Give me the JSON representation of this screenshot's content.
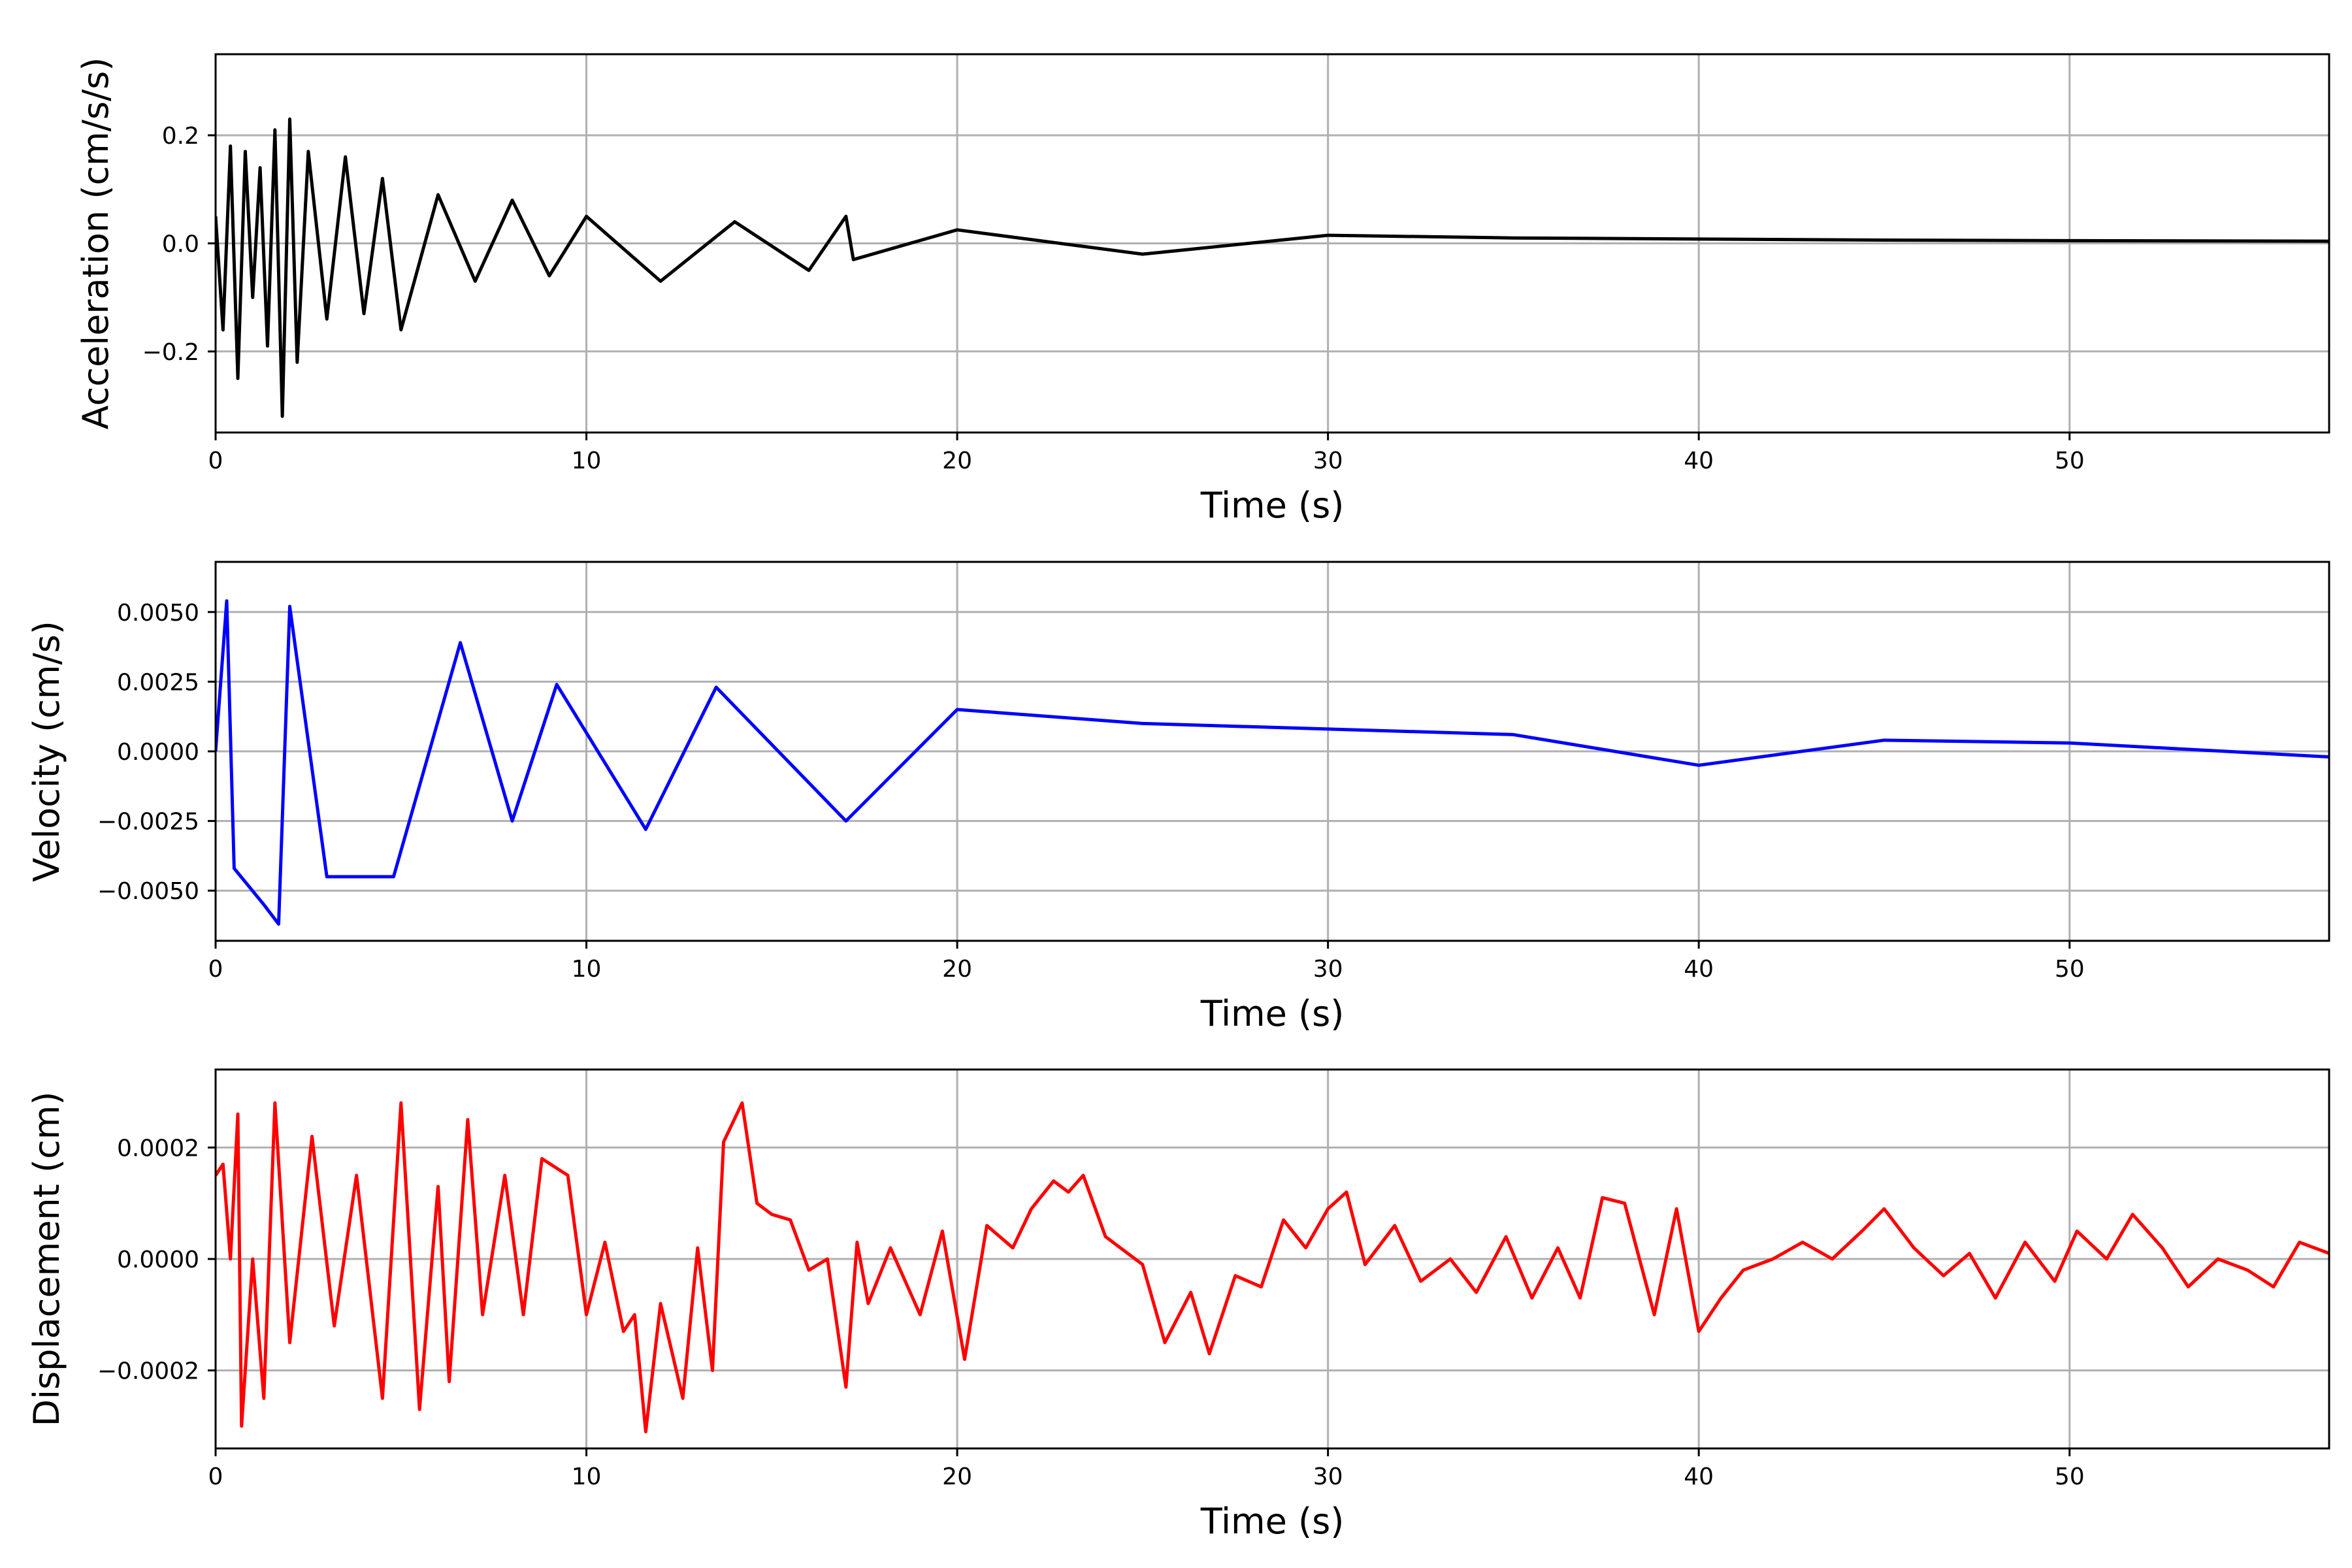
{
  "chart_data": [
    {
      "type": "line",
      "xlabel": "Time (s)",
      "ylabel": "Acceleration (cm/s/s)",
      "xlim": [
        0,
        57
      ],
      "ylim": [
        -0.35,
        0.35
      ],
      "xticks": [
        0,
        10,
        20,
        30,
        40,
        50
      ],
      "xtick_labels": [
        "0",
        "10",
        "20",
        "30",
        "40",
        "50"
      ],
      "yticks": [
        -0.2,
        0.0,
        0.2
      ],
      "ytick_labels": [
        "−0.2",
        "0.0",
        "0.2"
      ],
      "grid": true,
      "color": "#000000",
      "series": [
        {
          "x": [
            0,
            0.2,
            0.4,
            0.6,
            0.8,
            1.0,
            1.2,
            1.4,
            1.6,
            1.8,
            2.0,
            2.2,
            2.5,
            3.0,
            3.5,
            4.0,
            4.5,
            5.0,
            6.0,
            7.0,
            8.0,
            9.0,
            10.0,
            12.0,
            14.0,
            16.0,
            17.0,
            17.2,
            20.0,
            25.0,
            30.0,
            35.0,
            40.0,
            45.0,
            50.0,
            57.0
          ],
          "y": [
            0.05,
            -0.16,
            0.18,
            -0.25,
            0.17,
            -0.1,
            0.14,
            -0.19,
            0.21,
            -0.32,
            0.23,
            -0.22,
            0.17,
            -0.14,
            0.16,
            -0.13,
            0.12,
            -0.16,
            0.09,
            -0.07,
            0.08,
            -0.06,
            0.05,
            -0.07,
            0.04,
            -0.05,
            0.05,
            -0.03,
            0.025,
            -0.02,
            0.015,
            0.01,
            0.008,
            0.006,
            0.005,
            0.004
          ]
        }
      ]
    },
    {
      "type": "line",
      "xlabel": "Time (s)",
      "ylabel": "Velocity (cm/s)",
      "xlim": [
        0,
        57
      ],
      "ylim": [
        -0.0068,
        0.0068
      ],
      "xticks": [
        0,
        10,
        20,
        30,
        40,
        50
      ],
      "xtick_labels": [
        "0",
        "10",
        "20",
        "30",
        "40",
        "50"
      ],
      "yticks": [
        -0.005,
        -0.0025,
        0.0,
        0.0025,
        0.005
      ],
      "ytick_labels": [
        "−0.0050",
        "−0.0025",
        "0.0000",
        "0.0025",
        "0.0050"
      ],
      "grid": true,
      "color": "#0000ff",
      "series": [
        {
          "x": [
            0,
            0.3,
            0.5,
            1.3,
            1.7,
            2.0,
            3.0,
            4.8,
            6.6,
            8.0,
            9.2,
            11.6,
            13.5,
            17.0,
            20.0,
            25.0,
            30.0,
            35.0,
            40.0,
            45.0,
            50.0,
            57.0
          ],
          "y": [
            0.0,
            0.0054,
            -0.0042,
            -0.0055,
            -0.0062,
            0.0052,
            -0.0045,
            -0.0045,
            0.0039,
            -0.0025,
            0.0024,
            -0.0028,
            0.0023,
            -0.0025,
            0.0015,
            0.001,
            0.0008,
            0.0006,
            -0.0005,
            0.0004,
            0.0003,
            -0.0002
          ]
        }
      ]
    },
    {
      "type": "line",
      "xlabel": "Time (s)",
      "ylabel": "Displacement (cm)",
      "xlim": [
        0,
        57
      ],
      "ylim": [
        -0.00034,
        0.00034
      ],
      "xticks": [
        0,
        10,
        20,
        30,
        40,
        50
      ],
      "xtick_labels": [
        "0",
        "10",
        "20",
        "30",
        "40",
        "50"
      ],
      "yticks": [
        -0.0002,
        0.0,
        0.0002
      ],
      "ytick_labels": [
        "−0.0002",
        "0.0000",
        "0.0002"
      ],
      "grid": true,
      "color": "#ff0000",
      "series": [
        {
          "x": [
            0,
            0.2,
            0.4,
            0.6,
            0.7,
            1.0,
            1.3,
            1.6,
            2.0,
            2.6,
            3.2,
            3.8,
            4.5,
            5.0,
            5.5,
            6.0,
            6.3,
            6.8,
            7.2,
            7.8,
            8.3,
            8.8,
            9.5,
            10.0,
            10.5,
            11.0,
            11.3,
            11.6,
            12.0,
            12.6,
            13.0,
            13.4,
            13.7,
            14.2,
            14.6,
            15.0,
            15.5,
            16.0,
            16.5,
            17.0,
            17.3,
            17.6,
            18.2,
            19.0,
            19.6,
            20.2,
            20.8,
            21.5,
            22.0,
            22.6,
            23.0,
            23.4,
            24.0,
            25.0,
            25.6,
            26.3,
            26.8,
            27.5,
            28.2,
            28.8,
            29.4,
            30.0,
            30.5,
            31.0,
            31.8,
            32.5,
            33.3,
            34.0,
            34.8,
            35.5,
            36.2,
            36.8,
            37.4,
            38.0,
            38.8,
            39.4,
            40.0,
            40.6,
            41.2,
            42.0,
            42.8,
            43.6,
            44.4,
            45.0,
            45.8,
            46.6,
            47.3,
            48.0,
            48.8,
            49.6,
            50.2,
            51.0,
            51.7,
            52.5,
            53.2,
            54.0,
            54.8,
            55.5,
            56.2,
            57.0
          ],
          "y": [
            0.00015,
            0.00017,
            0.0,
            0.00026,
            -0.0003,
            0.0,
            -0.00025,
            0.00028,
            -0.00015,
            0.00022,
            -0.00012,
            0.00015,
            -0.00025,
            0.00028,
            -0.00027,
            0.00013,
            -0.00022,
            0.00025,
            -0.0001,
            0.00015,
            -0.0001,
            0.00018,
            0.00015,
            -0.0001,
            3e-05,
            -0.00013,
            -0.0001,
            -0.00031,
            -8e-05,
            -0.00025,
            2e-05,
            -0.0002,
            0.00021,
            0.00028,
            0.0001,
            8e-05,
            7e-05,
            -2e-05,
            0.0,
            -0.00023,
            3e-05,
            -8e-05,
            2e-05,
            -0.0001,
            5e-05,
            -0.00018,
            6e-05,
            2e-05,
            9e-05,
            0.00014,
            0.00012,
            0.00015,
            4e-05,
            -1e-05,
            -0.00015,
            -6e-05,
            -0.00017,
            -3e-05,
            -5e-05,
            7e-05,
            2e-05,
            9e-05,
            0.00012,
            -1e-05,
            6e-05,
            -4e-05,
            0.0,
            -6e-05,
            4e-05,
            -7e-05,
            2e-05,
            -7e-05,
            0.00011,
            0.0001,
            -0.0001,
            9e-05,
            -0.00013,
            -7e-05,
            -2e-05,
            0.0,
            3e-05,
            0.0,
            5e-05,
            9e-05,
            2e-05,
            -3e-05,
            1e-05,
            -7e-05,
            3e-05,
            -4e-05,
            5e-05,
            0.0,
            8e-05,
            2e-05,
            -5e-05,
            0.0,
            -2e-05,
            -5e-05,
            3e-05,
            1e-05
          ]
        }
      ]
    }
  ]
}
